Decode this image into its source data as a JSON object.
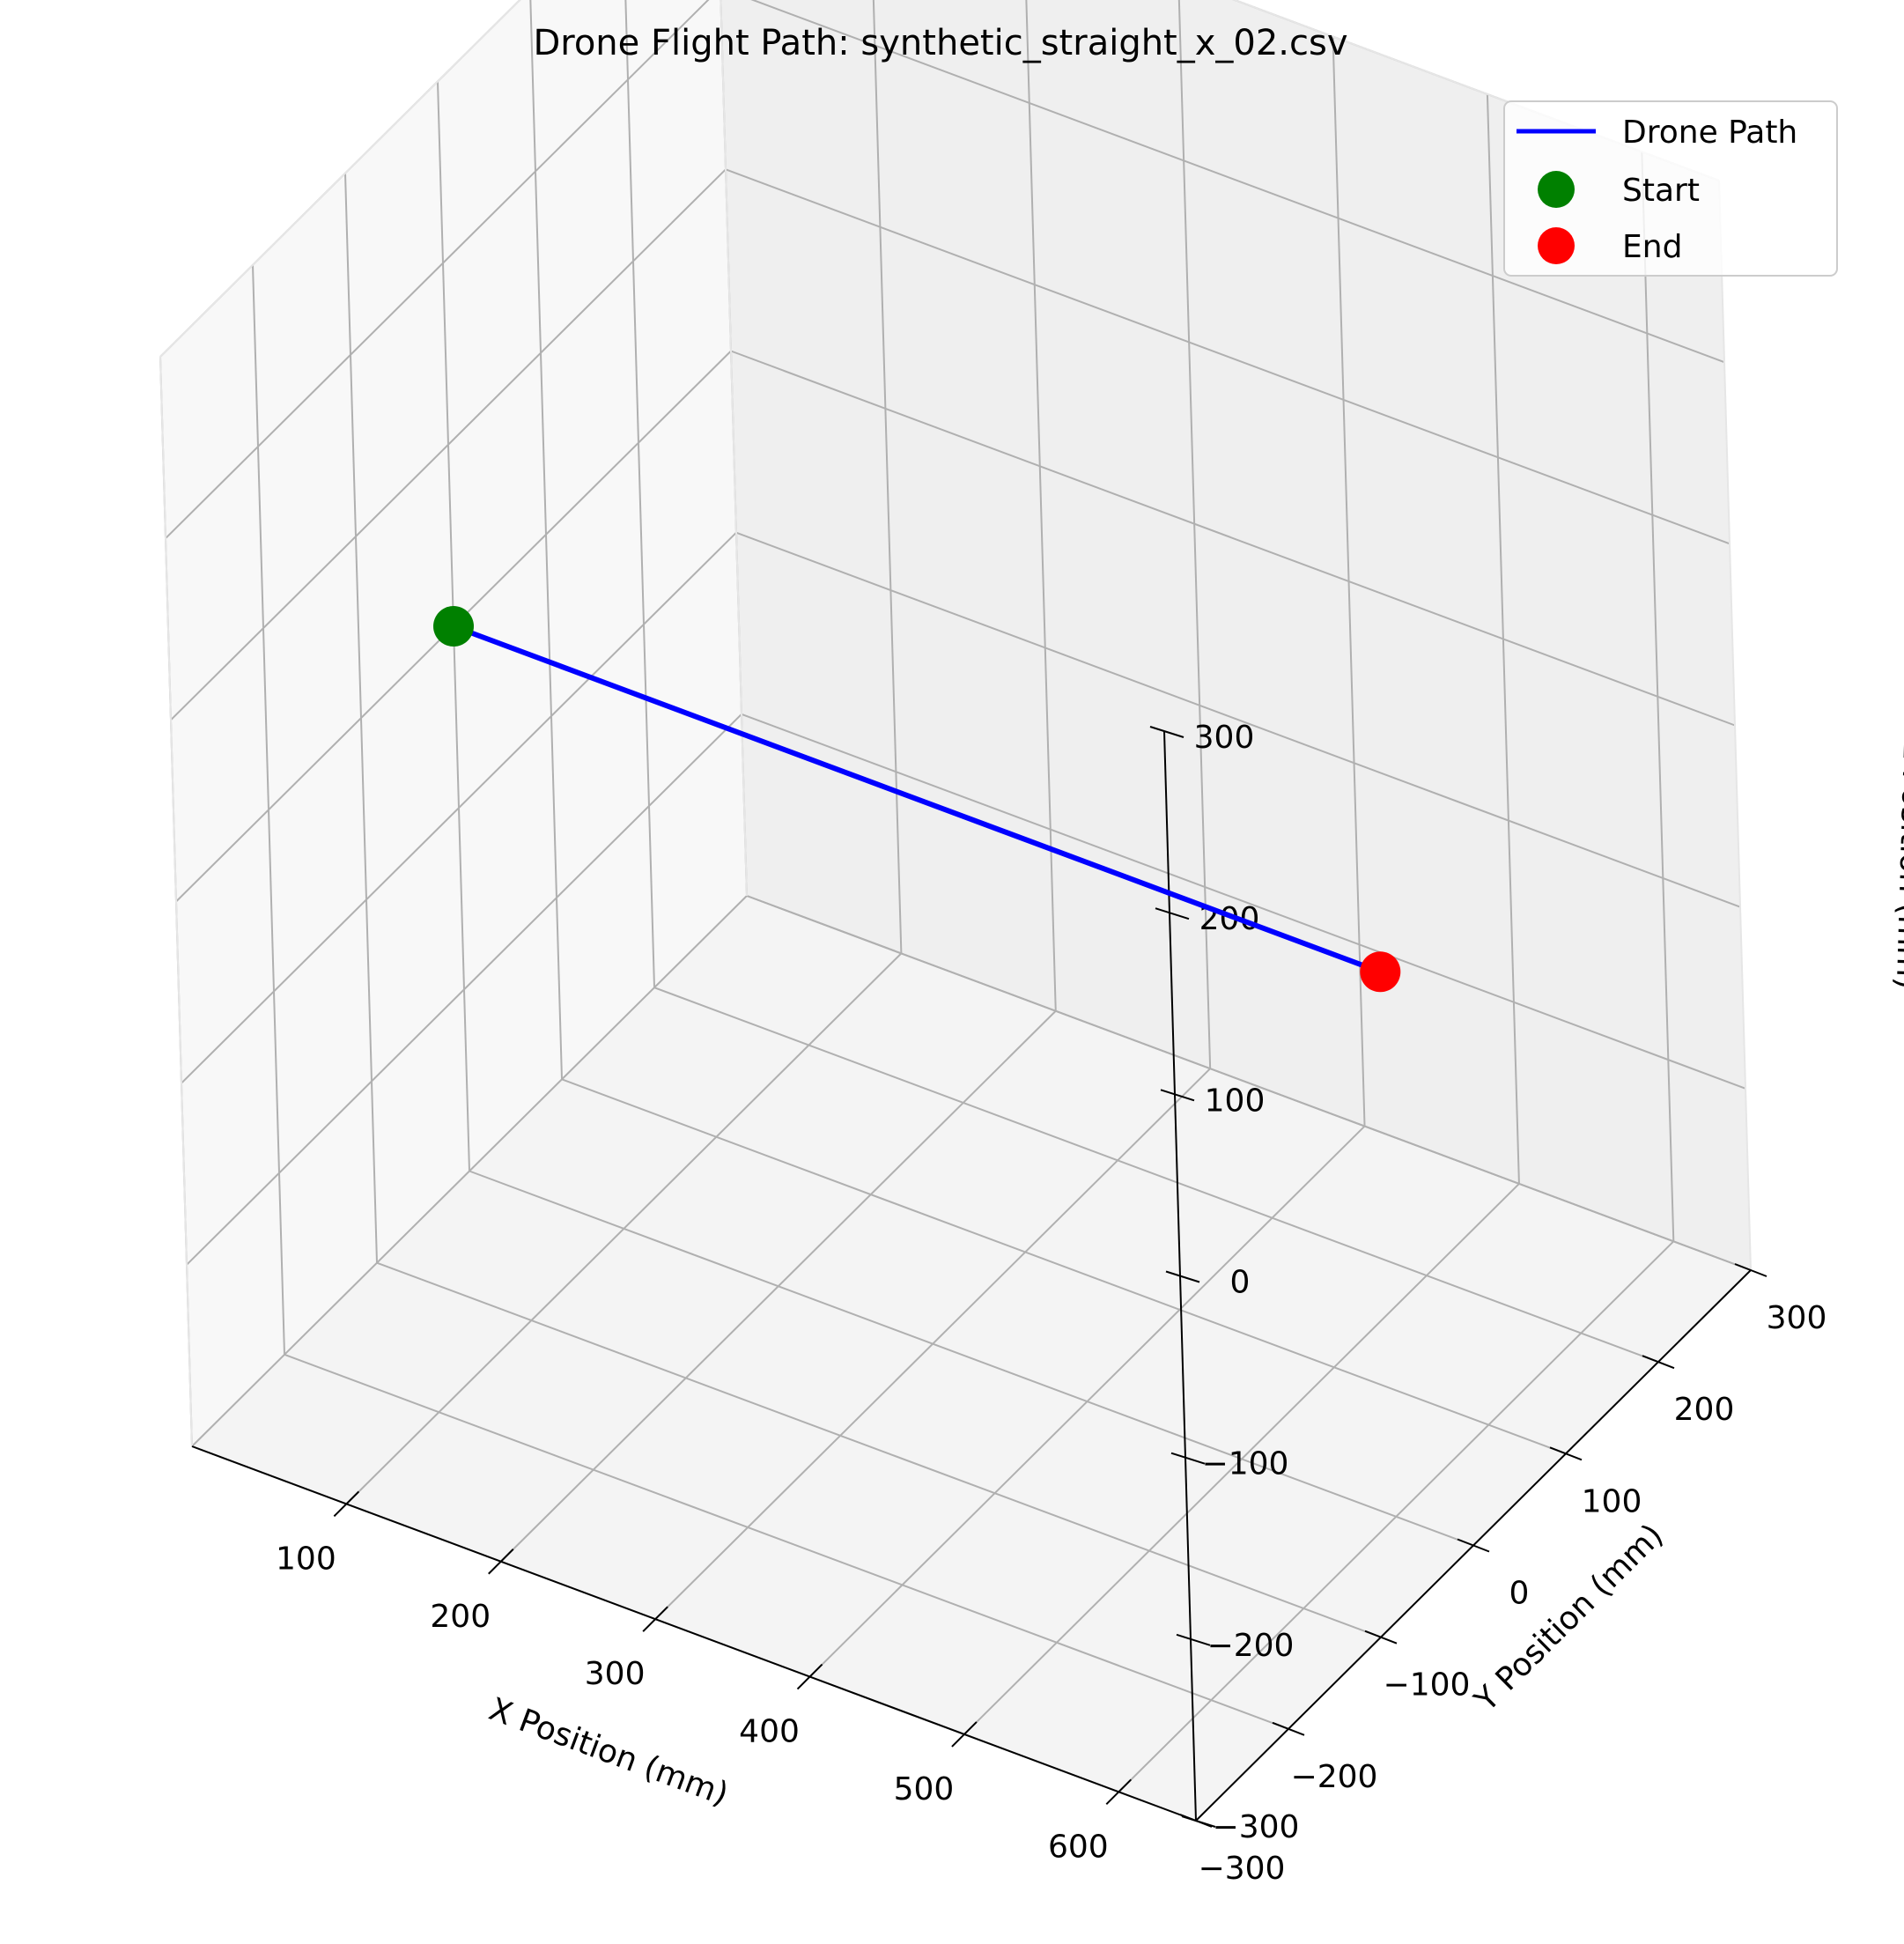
{
  "chart_data": {
    "type": "line",
    "projection": "3d",
    "title": "Drone Flight Path: synthetic_straight_x_02.csv",
    "xlabel": "X Position (mm)",
    "ylabel": "Y Position (mm)",
    "zlabel": "Z Position (mm)",
    "xlim": [
      0,
      650
    ],
    "ylim": [
      -300,
      300
    ],
    "zlim": [
      -300,
      300
    ],
    "x_ticks": [
      100,
      200,
      300,
      400,
      500,
      600
    ],
    "y_ticks": [
      -300,
      -200,
      -100,
      0,
      100,
      200,
      300
    ],
    "z_ticks": [
      -300,
      -200,
      -100,
      0,
      100,
      200,
      300
    ],
    "x_tick_labels": [
      "100",
      "200",
      "300",
      "400",
      "500",
      "600"
    ],
    "y_tick_labels": [
      "−300",
      "−200",
      "−100",
      "0",
      "100",
      "200",
      "300"
    ],
    "z_tick_labels": [
      "−300",
      "−200",
      "−100",
      "0",
      "100",
      "200",
      "300"
    ],
    "grid": true,
    "legend_position": "top-right",
    "legend": {
      "path": "Drone Path",
      "start": "Start",
      "end": "End"
    },
    "series": [
      {
        "name": "Drone Path",
        "color": "#0000ff",
        "x": [
          0,
          600
        ],
        "y": [
          0,
          0
        ],
        "z": [
          0,
          0
        ]
      }
    ],
    "markers": [
      {
        "name": "Start",
        "color": "#008000",
        "x": 0,
        "y": 0,
        "z": 0
      },
      {
        "name": "End",
        "color": "#ff0000",
        "x": 600,
        "y": 0,
        "z": 0
      }
    ]
  }
}
